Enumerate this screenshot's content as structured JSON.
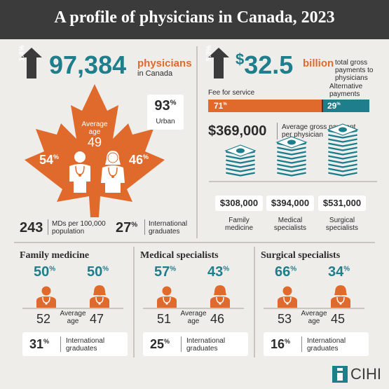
{
  "header": {
    "title": "A profile of physicians in Canada, 2023"
  },
  "colors": {
    "teal": "#1f7e8c",
    "orange": "#e06a2c",
    "dark": "#3b3b3b",
    "background": "#efedea"
  },
  "physicians": {
    "growth": "1.4%",
    "count": "97,384",
    "label": "physicians",
    "sublabel": "in Canada",
    "average_age_label": "Average age",
    "average_age": "49",
    "male_pct": "54",
    "female_pct": "46",
    "urban_pct": "93",
    "urban_label": "Urban",
    "mds_per_pop": "243",
    "mds_per_pop_label": "MDs per 100,000 population",
    "intl_pct": "27",
    "intl_label": "International graduates"
  },
  "payments": {
    "growth": "5.3%",
    "dollar": "$",
    "total": "32.5",
    "unit": "billion",
    "label": "total gross payments to physicians",
    "fee_label": "Fee for service",
    "alt_label": "Alternative payments",
    "fee_pct_value": 71,
    "alt_pct_value": 29,
    "fee_pct": "71",
    "alt_pct": "29",
    "avg_payment": "$369,000",
    "avg_payment_label": "Average gross payment per physician",
    "items": [
      {
        "amount": "$308,000",
        "label": "Family medicine",
        "icon": "money-stack-icon"
      },
      {
        "amount": "$394,000",
        "label": "Medical specialists",
        "icon": "money-stack-icon"
      },
      {
        "amount": "$531,000",
        "label": "Surgical specialists",
        "icon": "money-stack-icon"
      }
    ]
  },
  "specialties": [
    {
      "title": "Family medicine",
      "male_pct": "50",
      "female_pct": "50",
      "male_age": "52",
      "female_age": "47",
      "age_label": "Average age",
      "intl_pct": "31",
      "intl_label": "International graduates"
    },
    {
      "title": "Medical specialists",
      "male_pct": "57",
      "female_pct": "43",
      "male_age": "51",
      "female_age": "46",
      "age_label": "Average age",
      "intl_pct": "25",
      "intl_label": "International graduates"
    },
    {
      "title": "Surgical specialists",
      "male_pct": "66",
      "female_pct": "34",
      "male_age": "53",
      "female_age": "45",
      "age_label": "Average age",
      "intl_pct": "16",
      "intl_label": "International graduates"
    }
  ],
  "footer": {
    "logo_text": "CIHI"
  }
}
